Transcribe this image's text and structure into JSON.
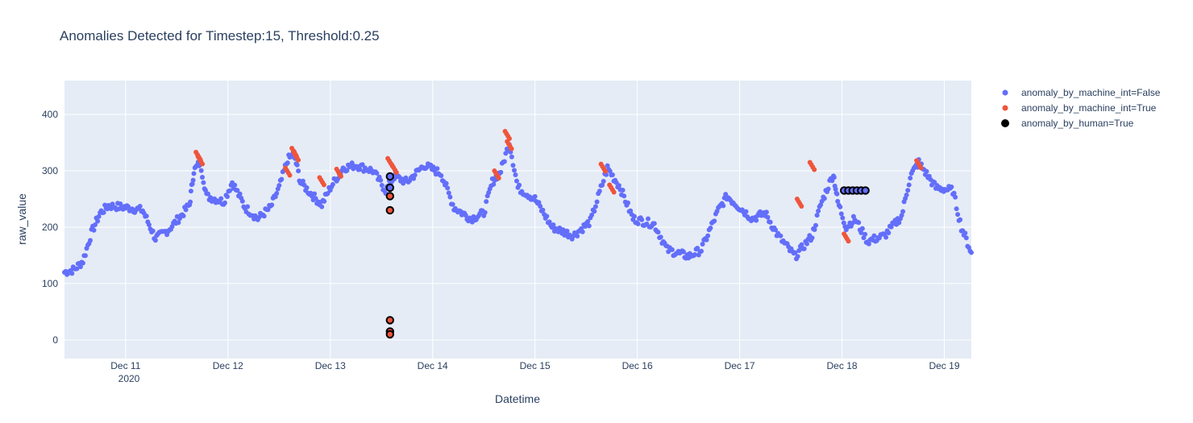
{
  "chart_data": {
    "type": "scatter",
    "title": "Anomalies Detected for Timestep:15, Threshold:0.25",
    "xlabel": "Datetime",
    "ylabel": "raw_value",
    "x_ticks": [
      "Dec 11",
      "Dec 12",
      "Dec 13",
      "Dec 14",
      "Dec 15",
      "Dec 16",
      "Dec 17",
      "Dec 18",
      "Dec 19"
    ],
    "x_year_label": "2020",
    "y_ticks": [
      0,
      100,
      200,
      300,
      400
    ],
    "xlim": [
      "2020-12-10 09:40",
      "2020-12-19 06:20"
    ],
    "ylim": [
      -33,
      460
    ],
    "grid": true,
    "legend_position": "top-right",
    "colors": {
      "background": "#e5ecf6",
      "grid": "#ffffff",
      "normal": "#636efa",
      "machine": "#ef553b",
      "human": "#000000"
    },
    "series": [
      {
        "name": "anomaly_by_machine_int=False",
        "color": "#636efa",
        "note": "dense time series, approx. key points (datetime, raw_value)",
        "points": [
          [
            "2020-12-10 09:40",
            120
          ],
          [
            "2020-12-10 12:00",
            125
          ],
          [
            "2020-12-10 14:00",
            140
          ],
          [
            "2020-12-10 16:00",
            190
          ],
          [
            "2020-12-10 18:00",
            225
          ],
          [
            "2020-12-10 20:00",
            238
          ],
          [
            "2020-12-11 00:00",
            235
          ],
          [
            "2020-12-11 04:00",
            230
          ],
          [
            "2020-12-11 07:00",
            180
          ],
          [
            "2020-12-11 10:00",
            195
          ],
          [
            "2020-12-11 13:00",
            220
          ],
          [
            "2020-12-11 15:00",
            240
          ],
          [
            "2020-12-11 16:00",
            300
          ],
          [
            "2020-12-11 17:30",
            315
          ],
          [
            "2020-12-11 19:00",
            255
          ],
          [
            "2020-12-11 23:00",
            245
          ],
          [
            "2020-12-12 01:00",
            280
          ],
          [
            "2020-12-12 04:00",
            235
          ],
          [
            "2020-12-12 07:00",
            215
          ],
          [
            "2020-12-12 10:00",
            235
          ],
          [
            "2020-12-12 12:00",
            270
          ],
          [
            "2020-12-12 14:00",
            320
          ],
          [
            "2020-12-12 15:30",
            330
          ],
          [
            "2020-12-12 17:00",
            280
          ],
          [
            "2020-12-12 20:00",
            255
          ],
          [
            "2020-12-12 22:00",
            240
          ],
          [
            "2020-12-13 00:00",
            270
          ],
          [
            "2020-12-13 03:00",
            305
          ],
          [
            "2020-12-13 06:00",
            310
          ],
          [
            "2020-12-13 10:00",
            300
          ],
          [
            "2020-12-13 13:00",
            265
          ],
          [
            "2020-12-13 15:00",
            290
          ],
          [
            "2020-12-13 18:00",
            280
          ],
          [
            "2020-12-13 22:00",
            310
          ],
          [
            "2020-12-14 02:00",
            295
          ],
          [
            "2020-12-14 05:00",
            235
          ],
          [
            "2020-12-14 09:00",
            215
          ],
          [
            "2020-12-14 12:00",
            225
          ],
          [
            "2020-12-14 14:00",
            280
          ],
          [
            "2020-12-14 16:00",
            300
          ],
          [
            "2020-12-14 18:00",
            350
          ],
          [
            "2020-12-14 20:00",
            270
          ],
          [
            "2020-12-15 00:00",
            250
          ],
          [
            "2020-12-15 04:00",
            200
          ],
          [
            "2020-12-15 09:00",
            185
          ],
          [
            "2020-12-15 13:00",
            210
          ],
          [
            "2020-12-15 17:00",
            305
          ],
          [
            "2020-12-15 20:00",
            270
          ],
          [
            "2020-12-15 23:00",
            215
          ],
          [
            "2020-12-16 04:00",
            205
          ],
          [
            "2020-12-16 07:00",
            160
          ],
          [
            "2020-12-16 12:00",
            148
          ],
          [
            "2020-12-16 15:00",
            160
          ],
          [
            "2020-12-16 19:00",
            230
          ],
          [
            "2020-12-16 21:00",
            255
          ],
          [
            "2020-12-17 00:00",
            235
          ],
          [
            "2020-12-17 03:00",
            215
          ],
          [
            "2020-12-17 06:00",
            225
          ],
          [
            "2020-12-17 09:00",
            185
          ],
          [
            "2020-12-17 13:00",
            148
          ],
          [
            "2020-12-17 17:00",
            185
          ],
          [
            "2020-12-17 19:00",
            240
          ],
          [
            "2020-12-17 22:00",
            295
          ],
          [
            "2020-12-17 23:00",
            245
          ],
          [
            "2020-12-18 01:00",
            200
          ],
          [
            "2020-12-18 03:00",
            215
          ],
          [
            "2020-12-18 06:00",
            175
          ],
          [
            "2020-12-18 10:00",
            185
          ],
          [
            "2020-12-18 14:00",
            220
          ],
          [
            "2020-12-18 16:00",
            290
          ],
          [
            "2020-12-18 18:00",
            315
          ],
          [
            "2020-12-18 22:00",
            270
          ],
          [
            "2020-12-19 02:00",
            265
          ],
          [
            "2020-12-19 04:00",
            200
          ],
          [
            "2020-12-19 06:20",
            155
          ]
        ]
      },
      {
        "name": "anomaly_by_machine_int=True",
        "color": "#ef553b",
        "points": [
          [
            "2020-12-11 17:00",
            333
          ],
          [
            "2020-12-11 17:30",
            325
          ],
          [
            "2020-12-12 14:00",
            305
          ],
          [
            "2020-12-12 15:30",
            340
          ],
          [
            "2020-12-12 16:00",
            332
          ],
          [
            "2020-12-12 22:00",
            288
          ],
          [
            "2020-12-13 02:00",
            303
          ],
          [
            "2020-12-13 14:00",
            322
          ],
          [
            "2020-12-13 15:00",
            310
          ],
          [
            "2020-12-14 15:00",
            300
          ],
          [
            "2020-12-14 17:30",
            370
          ],
          [
            "2020-12-14 18:00",
            352
          ],
          [
            "2020-12-15 16:00",
            312
          ],
          [
            "2020-12-15 18:00",
            275
          ],
          [
            "2020-12-17 14:00",
            250
          ],
          [
            "2020-12-17 17:00",
            315
          ],
          [
            "2020-12-18 01:00",
            188
          ],
          [
            "2020-12-18 18:00",
            318
          ]
        ]
      },
      {
        "name": "anomaly_by_human=True",
        "color": "#000000",
        "points": [
          [
            "2020-12-13 14:00",
            290
          ],
          [
            "2020-12-13 14:00",
            270
          ],
          [
            "2020-12-13 14:00",
            255
          ],
          [
            "2020-12-13 14:00",
            230
          ],
          [
            "2020-12-13 14:00",
            35
          ],
          [
            "2020-12-13 14:00",
            15
          ],
          [
            "2020-12-13 14:00",
            10
          ],
          [
            "2020-12-18 00:30",
            265
          ],
          [
            "2020-12-18 01:30",
            265
          ],
          [
            "2020-12-18 02:30",
            265
          ],
          [
            "2020-12-18 03:30",
            265
          ],
          [
            "2020-12-18 04:30",
            265
          ],
          [
            "2020-12-18 05:30",
            265
          ]
        ]
      }
    ]
  }
}
